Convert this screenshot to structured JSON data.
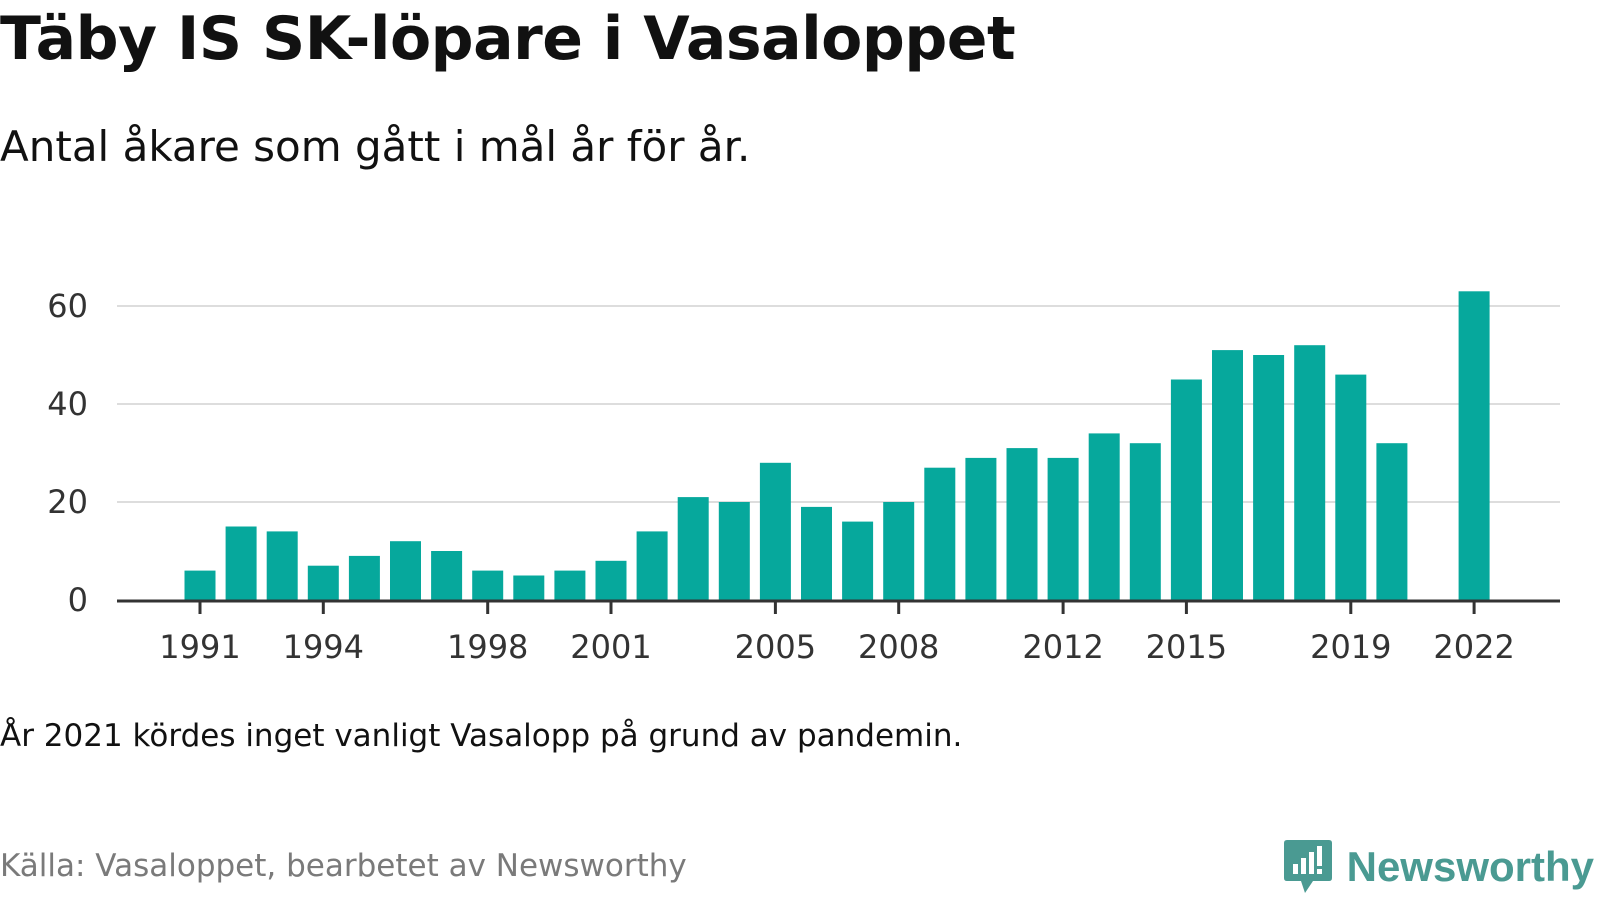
{
  "header": {
    "title": "Täby IS SK-löpare i Vasaloppet",
    "subtitle": "Antal åkare som gått i mål år för år."
  },
  "footer": {
    "note": "År 2021 kördes inget vanligt Vasalopp på grund av pandemin.",
    "source": "Källa: Vasaloppet, bearbetet av Newsworthy",
    "brand": "Newsworthy"
  },
  "colors": {
    "bar": "#06a89c",
    "grid": "#dddddd",
    "axis": "#333333",
    "brand": "#4a9a92"
  },
  "chart_data": {
    "type": "bar",
    "title": "Täby IS SK-löpare i Vasaloppet",
    "subtitle": "Antal åkare som gått i mål år för år.",
    "x": [
      1991,
      1992,
      1993,
      1994,
      1995,
      1996,
      1997,
      1998,
      1999,
      2000,
      2001,
      2002,
      2003,
      2004,
      2005,
      2006,
      2007,
      2008,
      2009,
      2010,
      2011,
      2012,
      2013,
      2014,
      2015,
      2016,
      2017,
      2018,
      2019,
      2020,
      2021,
      2022
    ],
    "values": [
      6,
      15,
      14,
      7,
      9,
      12,
      10,
      6,
      5,
      6,
      8,
      14,
      21,
      20,
      28,
      19,
      16,
      20,
      27,
      29,
      31,
      29,
      34,
      32,
      45,
      51,
      50,
      52,
      46,
      32,
      null,
      63
    ],
    "x_tick_labels": [
      "1991",
      "1994",
      "1998",
      "2001",
      "2005",
      "2008",
      "2012",
      "2015",
      "2019",
      "2022"
    ],
    "y_ticks": [
      0,
      20,
      40,
      60
    ],
    "ylim": [
      0,
      65
    ],
    "xlabel": "",
    "ylabel": "",
    "grid": true
  }
}
